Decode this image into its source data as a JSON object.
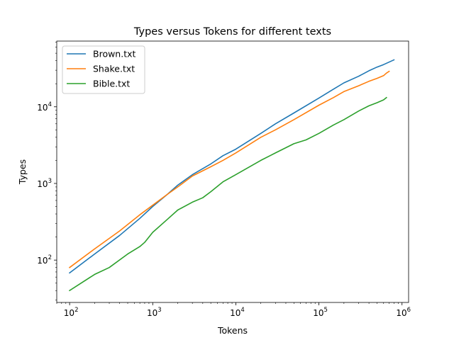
{
  "chart_data": {
    "type": "line",
    "title": "Types versus Tokens for different texts",
    "xlabel": "Tokens",
    "ylabel": "Types",
    "xscale": "log",
    "yscale": "log",
    "xlim": [
      70,
      1200000
    ],
    "ylim": [
      28,
      72000
    ],
    "xticks": [
      {
        "value": 100,
        "base": "10",
        "exp": "2"
      },
      {
        "value": 1000,
        "base": "10",
        "exp": "3"
      },
      {
        "value": 10000,
        "base": "10",
        "exp": "4"
      },
      {
        "value": 100000,
        "base": "10",
        "exp": "5"
      },
      {
        "value": 1000000,
        "base": "10",
        "exp": "6"
      }
    ],
    "yticks": [
      {
        "value": 100,
        "base": "10",
        "exp": "2"
      },
      {
        "value": 1000,
        "base": "10",
        "exp": "3"
      },
      {
        "value": 10000,
        "base": "10",
        "exp": "4"
      }
    ],
    "grid": false,
    "legend_position": "top-left",
    "series": [
      {
        "name": "Brown.txt",
        "color": "#1f77b4",
        "x": [
          100,
          200,
          400,
          700,
          1000,
          1500,
          2000,
          3000,
          5000,
          7000,
          10000,
          20000,
          30000,
          50000,
          100000,
          150000,
          200000,
          300000,
          400000,
          500000,
          600000,
          800000
        ],
        "y": [
          68,
          120,
          210,
          350,
          500,
          720,
          950,
          1300,
          1800,
          2300,
          2800,
          4500,
          6000,
          8300,
          13000,
          17000,
          20500,
          25000,
          29500,
          33000,
          35500,
          41000
        ]
      },
      {
        "name": "Shake.txt",
        "color": "#ff7f0e",
        "x": [
          100,
          200,
          400,
          700,
          1000,
          1500,
          2000,
          3000,
          5000,
          7000,
          10000,
          20000,
          30000,
          50000,
          100000,
          150000,
          200000,
          300000,
          400000,
          500000,
          600000,
          650000,
          700000
        ],
        "y": [
          80,
          140,
          240,
          390,
          520,
          720,
          900,
          1250,
          1650,
          2000,
          2500,
          4000,
          5000,
          6800,
          10500,
          13200,
          15800,
          18800,
          21500,
          23500,
          25500,
          27500,
          29000
        ]
      },
      {
        "name": "Bible.txt",
        "color": "#2ca02c",
        "x": [
          100,
          200,
          300,
          500,
          700,
          800,
          1000,
          1500,
          2000,
          3000,
          4000,
          5000,
          7000,
          10000,
          20000,
          30000,
          50000,
          70000,
          100000,
          150000,
          200000,
          300000,
          400000,
          500000,
          600000,
          650000
        ],
        "y": [
          40,
          65,
          80,
          120,
          150,
          170,
          230,
          340,
          450,
          570,
          650,
          780,
          1050,
          1300,
          2000,
          2500,
          3300,
          3700,
          4500,
          5800,
          6800,
          8800,
          10300,
          11300,
          12300,
          13200
        ]
      }
    ]
  }
}
